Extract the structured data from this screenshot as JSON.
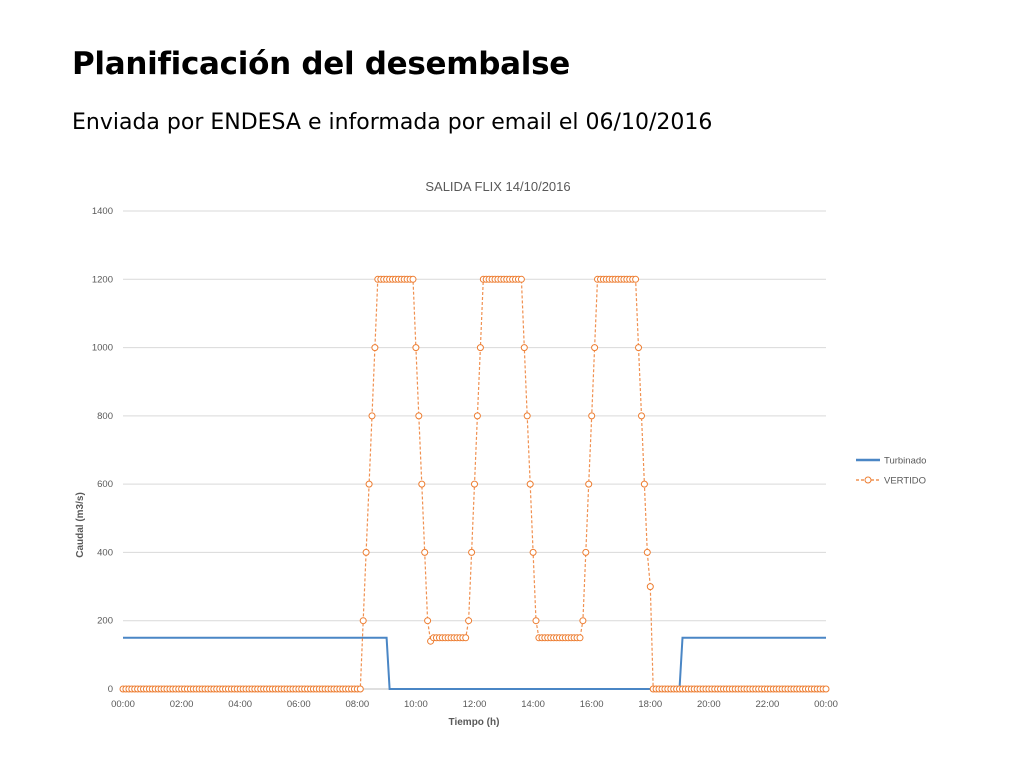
{
  "slide": {
    "title": "Planificación del desembalse",
    "subtitle": "Enviada por ENDESA e informada por email el 06/10/2016"
  },
  "chart_data": {
    "type": "line",
    "title": "SALIDA FLIX 14/10/2016",
    "xlabel": "Tiempo (h)",
    "ylabel": "Caudal (m3/s)",
    "xlim": [
      0,
      24
    ],
    "ylim": [
      0,
      1400
    ],
    "xticks": [
      "00:00",
      "02:00",
      "04:00",
      "06:00",
      "08:00",
      "10:00",
      "12:00",
      "14:00",
      "16:00",
      "18:00",
      "20:00",
      "22:00",
      "00:00"
    ],
    "yticks": [
      0,
      200,
      400,
      600,
      800,
      1000,
      1200,
      1400
    ],
    "grid": true,
    "legend_position": "right",
    "colors": {
      "Turbinado": "#4a86c5",
      "VERTIDO": "#ed7d31"
    },
    "series": [
      {
        "name": "Turbinado",
        "style": "solid-line",
        "x": [
          0,
          9.0,
          9.1,
          19.0,
          19.1,
          24
        ],
        "y": [
          150,
          150,
          0,
          0,
          150,
          150
        ]
      },
      {
        "name": "VERTIDO",
        "style": "dashed-line-circle-markers",
        "x": [
          0,
          8.1,
          8.2,
          8.3,
          8.4,
          8.5,
          8.6,
          8.7,
          8.8,
          8.9,
          9.0,
          9.1,
          9.2,
          9.3,
          9.4,
          9.5,
          9.6,
          9.7,
          9.8,
          9.9,
          10.0,
          10.1,
          10.2,
          10.3,
          10.4,
          10.5,
          10.6,
          10.7,
          10.8,
          10.9,
          11.0,
          11.1,
          11.2,
          11.3,
          11.4,
          11.5,
          11.6,
          11.7,
          11.8,
          11.9,
          12.0,
          12.1,
          12.2,
          12.3,
          12.4,
          12.5,
          12.6,
          12.7,
          12.8,
          12.9,
          13.0,
          13.1,
          13.2,
          13.3,
          13.4,
          13.5,
          13.6,
          13.7,
          13.8,
          13.9,
          14.0,
          14.1,
          14.2,
          14.3,
          14.4,
          14.5,
          14.6,
          14.7,
          14.8,
          14.9,
          15.0,
          15.1,
          15.2,
          15.3,
          15.4,
          15.5,
          15.6,
          15.7,
          15.8,
          15.9,
          16.0,
          16.1,
          16.2,
          16.3,
          16.4,
          16.5,
          16.6,
          16.7,
          16.8,
          16.9,
          17.0,
          17.1,
          17.2,
          17.3,
          17.4,
          17.5,
          17.6,
          17.7,
          17.8,
          17.9,
          18.0,
          18.1,
          18.2,
          18.3,
          18.4,
          24
        ],
        "y": [
          0,
          0,
          200,
          400,
          600,
          800,
          1000,
          1200,
          1200,
          1200,
          1200,
          1200,
          1200,
          1200,
          1200,
          1200,
          1200,
          1200,
          1200,
          1200,
          1000,
          800,
          600,
          400,
          200,
          140,
          150,
          150,
          150,
          150,
          150,
          150,
          150,
          150,
          150,
          150,
          150,
          150,
          200,
          400,
          600,
          800,
          1000,
          1200,
          1200,
          1200,
          1200,
          1200,
          1200,
          1200,
          1200,
          1200,
          1200,
          1200,
          1200,
          1200,
          1200,
          1000,
          800,
          600,
          400,
          200,
          150,
          150,
          150,
          150,
          150,
          150,
          150,
          150,
          150,
          150,
          150,
          150,
          150,
          150,
          150,
          200,
          400,
          600,
          800,
          1000,
          1200,
          1200,
          1200,
          1200,
          1200,
          1200,
          1200,
          1200,
          1200,
          1200,
          1200,
          1200,
          1200,
          1200,
          1000,
          800,
          600,
          400,
          300,
          0,
          0,
          0,
          0,
          0
        ]
      }
    ]
  }
}
